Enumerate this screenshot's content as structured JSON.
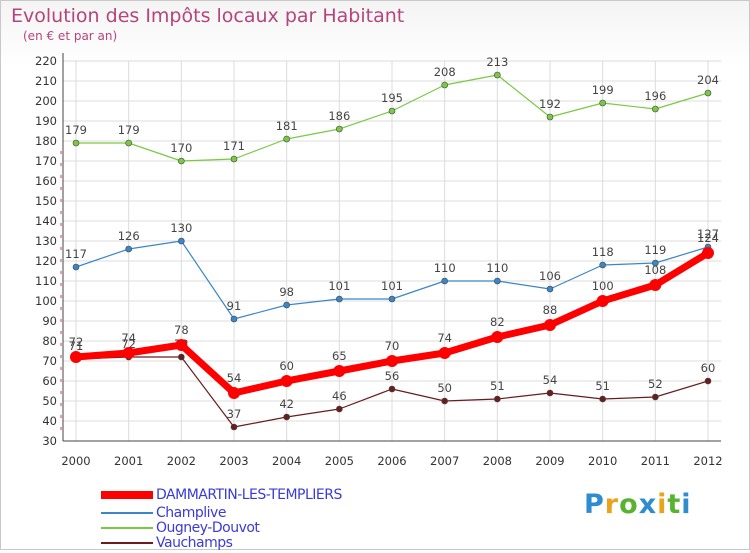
{
  "title": "Evolution des Impôts locaux par Habitant",
  "subtitle": "(en € et par an)",
  "logo": {
    "text": "Proxiti",
    "colors": [
      "#2f8ccf",
      "#e8a51c",
      "#58b430",
      "#2f8ccf",
      "#e8a51c",
      "#58b430",
      "#2f8ccf"
    ]
  },
  "chart_data": {
    "type": "line",
    "title": "Evolution des Impôts locaux par Habitant",
    "ylabel": "(en € et par an)",
    "xlabel": "",
    "ylim": [
      30,
      220
    ],
    "y_ticks": [
      30,
      40,
      50,
      60,
      70,
      80,
      90,
      100,
      110,
      120,
      130,
      140,
      150,
      160,
      170,
      180,
      190,
      200,
      210,
      220
    ],
    "grid": true,
    "legend_position": "bottom-left",
    "x": [
      "2000",
      "2001",
      "2002",
      "2003",
      "2004",
      "2005",
      "2006",
      "2007",
      "2008",
      "2009",
      "2010",
      "2011",
      "2012"
    ],
    "series": [
      {
        "name": "DAMMARTIN-LES-TEMPLIERS",
        "color": "#ff0000",
        "values": [
          72,
          74,
          78,
          54,
          60,
          65,
          70,
          74,
          82,
          88,
          100,
          108,
          124
        ]
      },
      {
        "name": "Champlive",
        "color": "#3a87c8",
        "values": [
          117,
          126,
          130,
          91,
          98,
          101,
          101,
          110,
          110,
          106,
          118,
          119,
          127
        ]
      },
      {
        "name": "Ougney-Douvot",
        "color": "#7ac943",
        "values": [
          179,
          179,
          170,
          171,
          181,
          186,
          195,
          208,
          213,
          192,
          199,
          196,
          204
        ]
      },
      {
        "name": "Vauchamps",
        "color": "#6b1c1c",
        "values": [
          71,
          72,
          72,
          37,
          42,
          46,
          56,
          50,
          51,
          54,
          51,
          52,
          60
        ]
      }
    ]
  }
}
